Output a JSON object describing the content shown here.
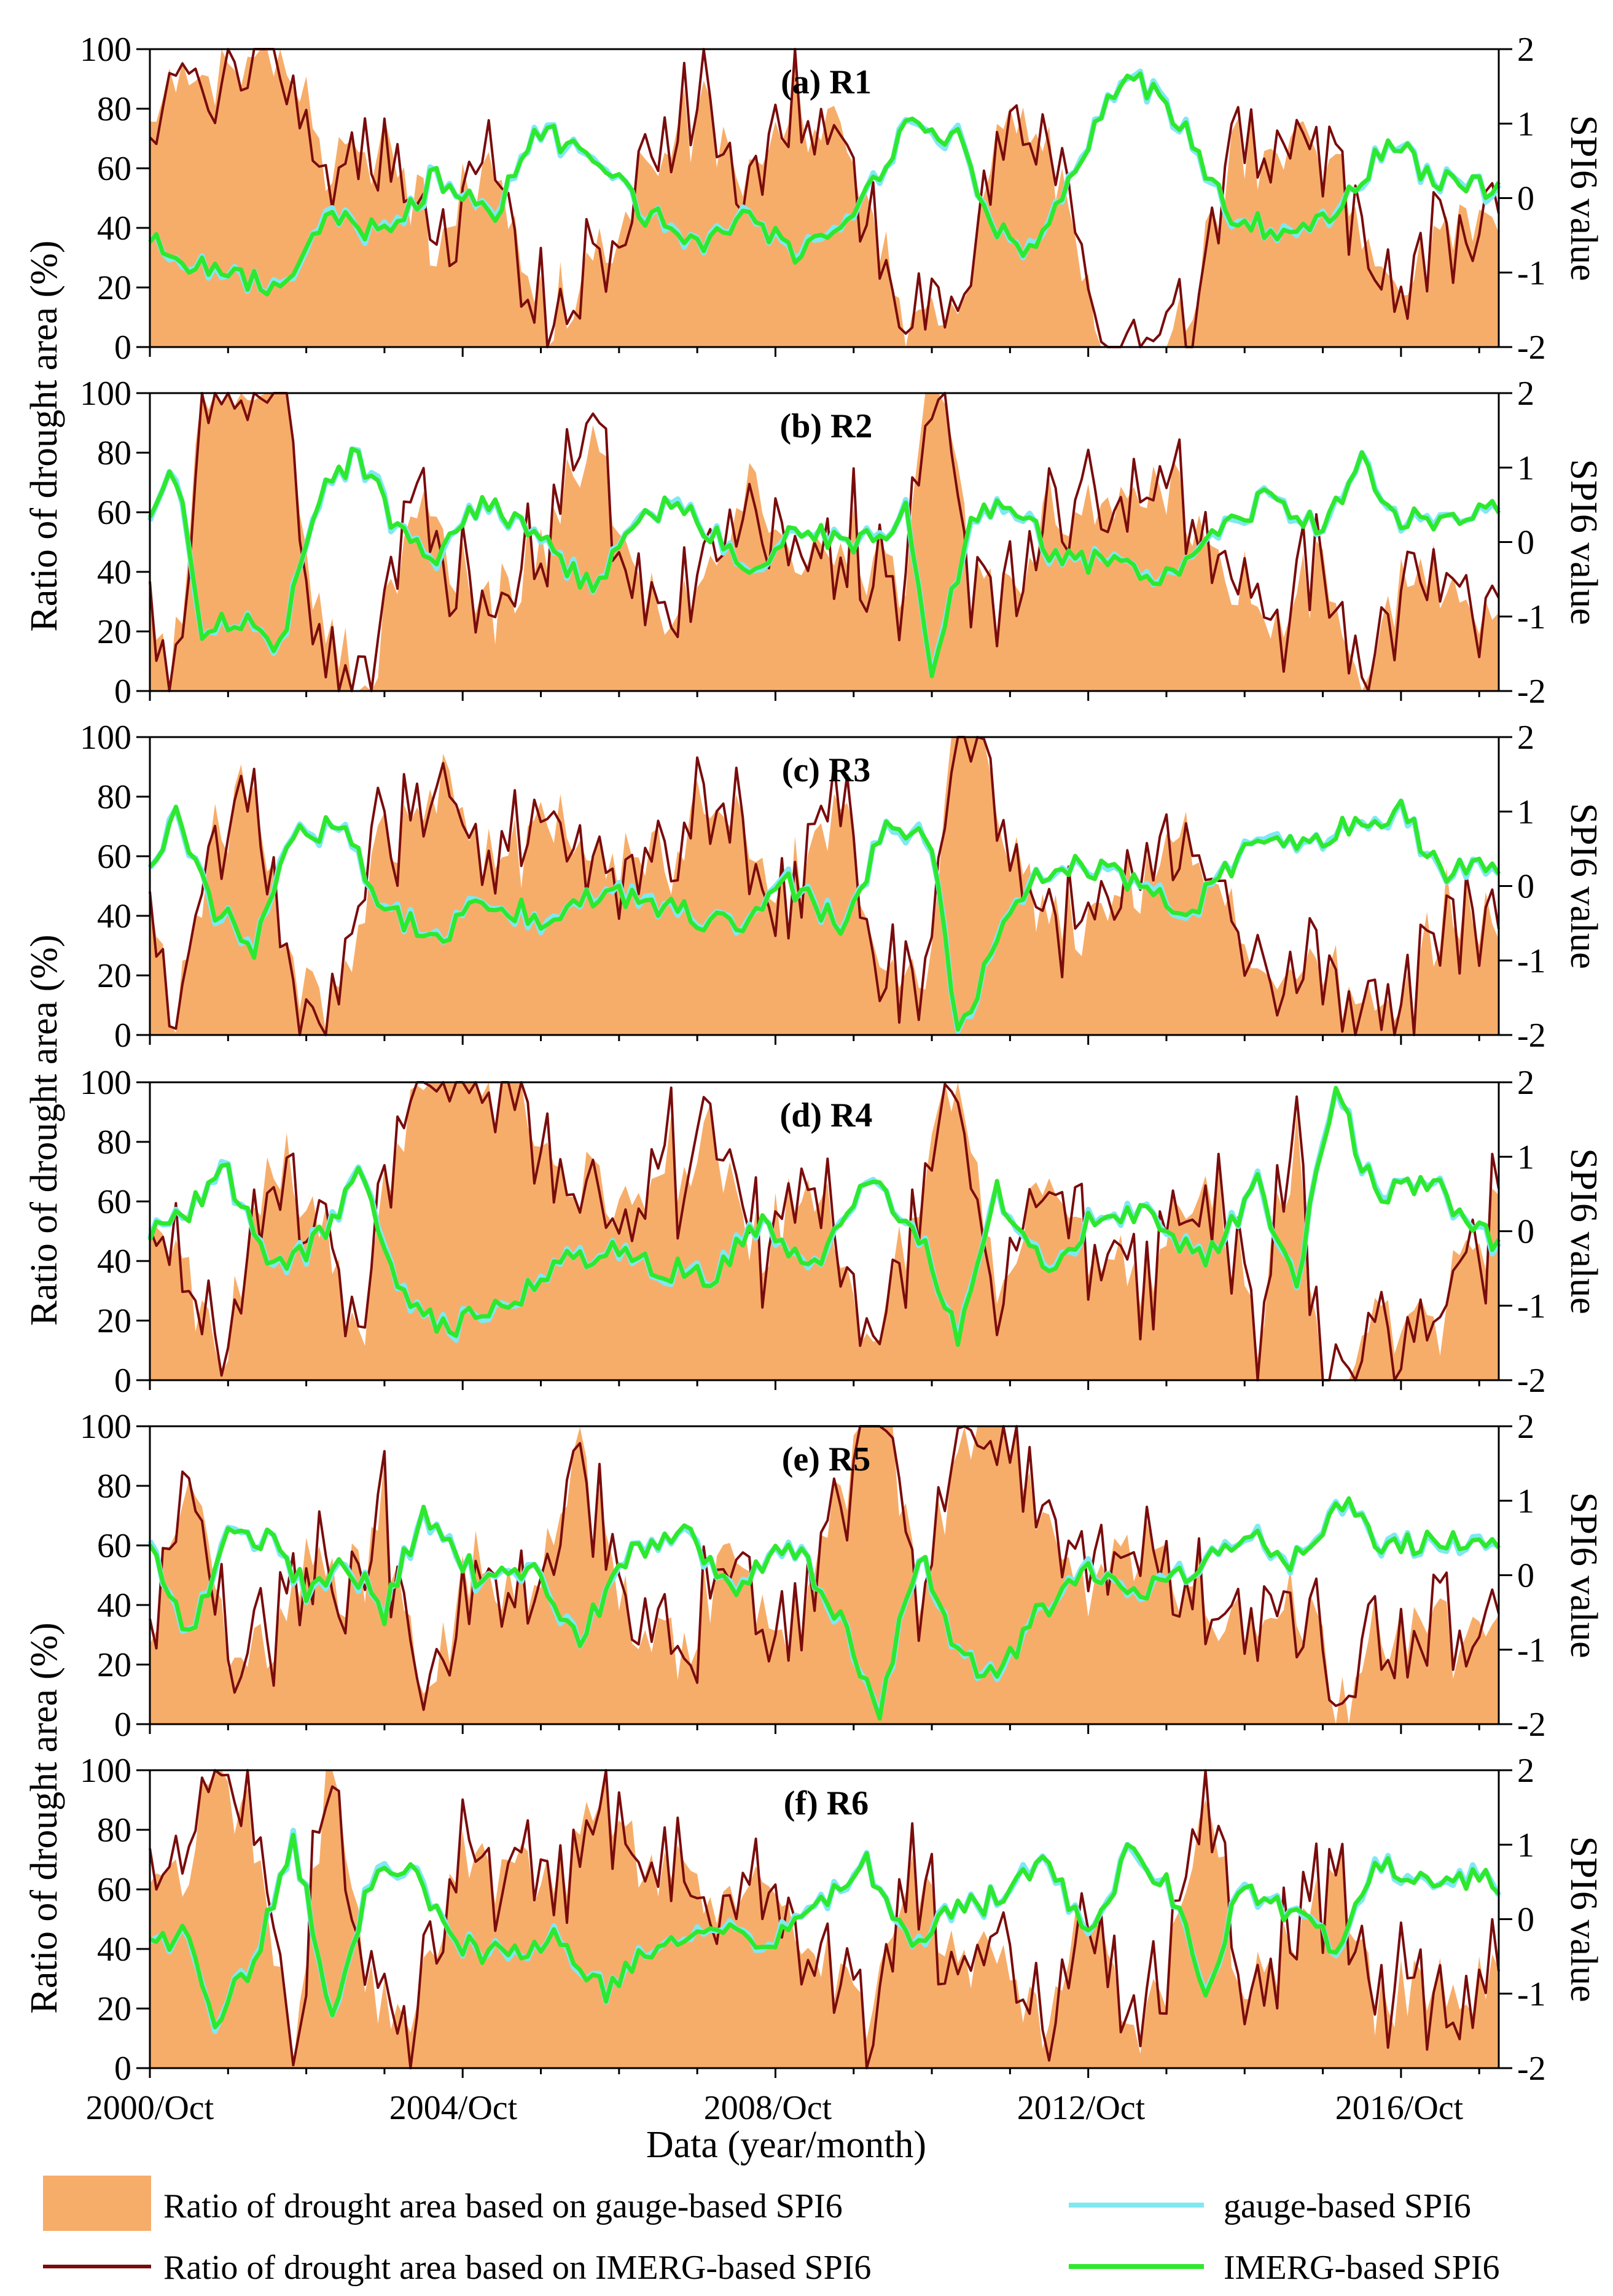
{
  "chart_data": {
    "type": "area",
    "x_start": "2000/10",
    "n_months": 208,
    "xlabel": "Data (year/month)",
    "x_tick_labels": [
      "2000/Oct",
      "2004/Oct",
      "2008/Oct",
      "2012/Oct",
      "2016/Oct"
    ],
    "x_tick_months": [
      0,
      48,
      96,
      144,
      192
    ],
    "ylabel_left": "Ratio of drought area (%)",
    "ylabel_right": "SPI6 value",
    "ylim_left": [
      0,
      100
    ],
    "ylim_right": [
      -2,
      2
    ],
    "y_ticks_left": [
      "0",
      "20",
      "40",
      "60",
      "80",
      "100"
    ],
    "y_ticks_right": [
      "-2",
      "-1",
      "0",
      "1",
      "2"
    ],
    "series_colors": {
      "area_gauge": "#f7ad6a",
      "area_imerg": "#7a0c0c",
      "spi_gauge": "#7fe8f2",
      "spi_imerg": "#2ee82e"
    },
    "legend": [
      {
        "key": "area_gauge",
        "label": "Ratio of drought area based on gauge-based SPI6"
      },
      {
        "key": "spi_gauge",
        "label": "gauge-based SPI6"
      },
      {
        "key": "area_imerg",
        "label": "Ratio of drought area based on IMERG-based SPI6"
      },
      {
        "key": "spi_imerg",
        "label": "IMERG-based SPI6"
      }
    ],
    "panels": [
      {
        "title": "(a) R1",
        "spi_keys": [
          [
            0,
            -0.5
          ],
          [
            5,
            -0.8
          ],
          [
            12,
            -1.0
          ],
          [
            20,
            -1.3
          ],
          [
            28,
            -0.2
          ],
          [
            36,
            -0.5
          ],
          [
            44,
            0.3
          ],
          [
            52,
            -0.3
          ],
          [
            60,
            0.9
          ],
          [
            68,
            0.5
          ],
          [
            76,
            -0.2
          ],
          [
            84,
            -0.6
          ],
          [
            92,
            -0.3
          ],
          [
            100,
            -0.8
          ],
          [
            108,
            -0.2
          ],
          [
            116,
            1.0
          ],
          [
            124,
            0.8
          ],
          [
            130,
            -0.4
          ],
          [
            136,
            -0.8
          ],
          [
            144,
            0.8
          ],
          [
            150,
            1.8
          ],
          [
            158,
            1.0
          ],
          [
            166,
            -0.2
          ],
          [
            174,
            -0.5
          ],
          [
            182,
            -0.2
          ],
          [
            190,
            0.8
          ],
          [
            198,
            0.2
          ],
          [
            207,
            0.1
          ]
        ]
      },
      {
        "title": "(b) R2",
        "spi_keys": [
          [
            0,
            0.4
          ],
          [
            4,
            0.9
          ],
          [
            8,
            -1.2
          ],
          [
            14,
            -1.0
          ],
          [
            20,
            -1.4
          ],
          [
            26,
            0.6
          ],
          [
            32,
            1.2
          ],
          [
            38,
            0.2
          ],
          [
            44,
            -0.2
          ],
          [
            52,
            0.6
          ],
          [
            60,
            0.0
          ],
          [
            68,
            -0.6
          ],
          [
            76,
            0.5
          ],
          [
            84,
            0.3
          ],
          [
            92,
            -0.3
          ],
          [
            100,
            0.2
          ],
          [
            108,
            -0.1
          ],
          [
            116,
            0.4
          ],
          [
            120,
            -1.8
          ],
          [
            126,
            0.2
          ],
          [
            132,
            0.6
          ],
          [
            140,
            -0.3
          ],
          [
            148,
            -0.2
          ],
          [
            156,
            -0.5
          ],
          [
            164,
            0.2
          ],
          [
            172,
            0.6
          ],
          [
            180,
            0.2
          ],
          [
            186,
            1.1
          ],
          [
            192,
            0.3
          ],
          [
            207,
            0.4
          ]
        ]
      },
      {
        "title": "(c) R3",
        "spi_keys": [
          [
            0,
            0.3
          ],
          [
            4,
            0.9
          ],
          [
            10,
            -0.3
          ],
          [
            16,
            -0.8
          ],
          [
            22,
            0.7
          ],
          [
            30,
            0.8
          ],
          [
            36,
            -0.3
          ],
          [
            44,
            -0.7
          ],
          [
            52,
            -0.2
          ],
          [
            60,
            -0.4
          ],
          [
            70,
            -0.1
          ],
          [
            80,
            -0.3
          ],
          [
            90,
            -0.6
          ],
          [
            98,
            0.0
          ],
          [
            106,
            -0.5
          ],
          [
            114,
            0.9
          ],
          [
            120,
            0.5
          ],
          [
            124,
            -2.0
          ],
          [
            130,
            -0.7
          ],
          [
            136,
            0.1
          ],
          [
            144,
            0.3
          ],
          [
            152,
            0.0
          ],
          [
            160,
            -0.3
          ],
          [
            168,
            0.4
          ],
          [
            176,
            0.6
          ],
          [
            184,
            0.8
          ],
          [
            192,
            1.0
          ],
          [
            198,
            0.2
          ],
          [
            207,
            0.3
          ]
        ]
      },
      {
        "title": "(d) R4",
        "spi_keys": [
          [
            0,
            -0.1
          ],
          [
            6,
            0.3
          ],
          [
            12,
            0.8
          ],
          [
            18,
            -0.5
          ],
          [
            24,
            -0.3
          ],
          [
            32,
            0.7
          ],
          [
            40,
            -1.0
          ],
          [
            46,
            -1.3
          ],
          [
            54,
            -1.0
          ],
          [
            62,
            -0.5
          ],
          [
            70,
            -0.2
          ],
          [
            78,
            -0.5
          ],
          [
            86,
            -0.6
          ],
          [
            94,
            0.1
          ],
          [
            102,
            -0.5
          ],
          [
            110,
            0.7
          ],
          [
            118,
            0.0
          ],
          [
            124,
            -1.4
          ],
          [
            130,
            0.5
          ],
          [
            138,
            -0.6
          ],
          [
            146,
            0.3
          ],
          [
            154,
            0.2
          ],
          [
            162,
            -0.4
          ],
          [
            170,
            0.6
          ],
          [
            176,
            -0.6
          ],
          [
            182,
            1.9
          ],
          [
            188,
            0.5
          ],
          [
            196,
            0.7
          ],
          [
            207,
            -0.2
          ]
        ]
      },
      {
        "title": "(e) R5",
        "spi_keys": [
          [
            0,
            0.4
          ],
          [
            6,
            -0.8
          ],
          [
            12,
            0.6
          ],
          [
            18,
            0.5
          ],
          [
            24,
            -0.2
          ],
          [
            30,
            0.2
          ],
          [
            36,
            -0.5
          ],
          [
            42,
            0.9
          ],
          [
            50,
            0.0
          ],
          [
            58,
            0.1
          ],
          [
            66,
            -0.8
          ],
          [
            74,
            0.3
          ],
          [
            82,
            0.6
          ],
          [
            90,
            -0.2
          ],
          [
            98,
            0.5
          ],
          [
            106,
            -0.6
          ],
          [
            112,
            -1.8
          ],
          [
            118,
            0.3
          ],
          [
            124,
            -1.0
          ],
          [
            130,
            -1.4
          ],
          [
            136,
            -0.5
          ],
          [
            144,
            0.0
          ],
          [
            152,
            -0.2
          ],
          [
            160,
            0.0
          ],
          [
            168,
            0.5
          ],
          [
            176,
            0.2
          ],
          [
            184,
            1.0
          ],
          [
            190,
            0.3
          ],
          [
            198,
            0.5
          ],
          [
            207,
            0.4
          ]
        ]
      },
      {
        "title": "(f) R6",
        "spi_keys": [
          [
            0,
            -0.3
          ],
          [
            6,
            -0.2
          ],
          [
            10,
            -1.3
          ],
          [
            16,
            -0.6
          ],
          [
            22,
            1.1
          ],
          [
            28,
            -1.3
          ],
          [
            34,
            0.5
          ],
          [
            40,
            0.7
          ],
          [
            46,
            -0.3
          ],
          [
            54,
            -0.5
          ],
          [
            62,
            -0.3
          ],
          [
            70,
            -1.0
          ],
          [
            78,
            -0.3
          ],
          [
            86,
            0.0
          ],
          [
            94,
            -0.4
          ],
          [
            102,
            0.2
          ],
          [
            110,
            0.8
          ],
          [
            116,
            -0.3
          ],
          [
            122,
            0.0
          ],
          [
            130,
            0.3
          ],
          [
            138,
            0.8
          ],
          [
            144,
            -0.3
          ],
          [
            150,
            0.9
          ],
          [
            156,
            0.5
          ],
          [
            162,
            -0.9
          ],
          [
            168,
            0.5
          ],
          [
            176,
            0.0
          ],
          [
            182,
            -0.4
          ],
          [
            188,
            0.8
          ],
          [
            196,
            0.5
          ],
          [
            207,
            0.5
          ]
        ]
      }
    ]
  }
}
